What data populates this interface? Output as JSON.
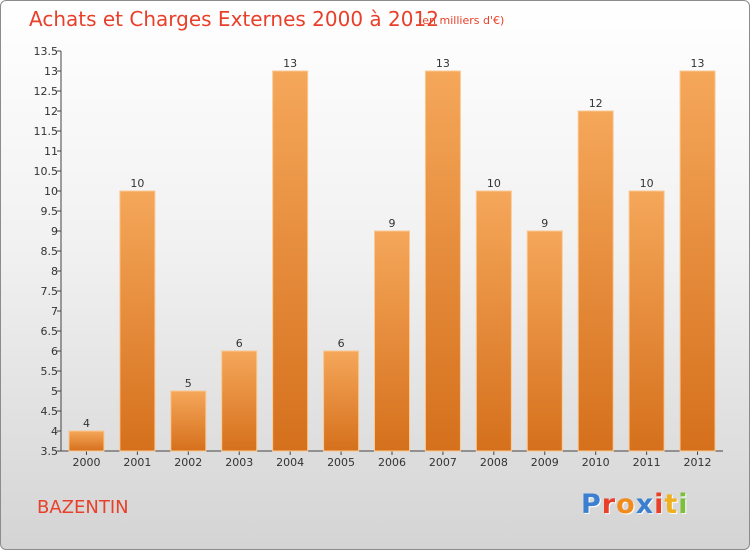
{
  "header": {
    "title": "Achats et Charges Externes 2000 à 2012",
    "unit": "(en milliers d'€)"
  },
  "footer": {
    "town": "BAZENTIN",
    "logo_letters": [
      "P",
      "r",
      "o",
      "x",
      "i",
      "t",
      "i"
    ],
    "logo_colors": [
      "#3a7fd0",
      "#e8402a",
      "#f08c1e",
      "#3a7fd0",
      "#e8402a",
      "#f0b01e",
      "#7bbf3a"
    ]
  },
  "colors": {
    "bar_light": "#f5a75a",
    "bar_dark": "#d5701c",
    "bar_edge": "#fbc890",
    "text_red": "#e8402a"
  },
  "chart_data": {
    "type": "bar",
    "title": "Achats et Charges Externes 2000 à 2012",
    "subtitle": "(en milliers d'€)",
    "categories": [
      "2000",
      "2001",
      "2002",
      "2003",
      "2004",
      "2005",
      "2006",
      "2007",
      "2008",
      "2009",
      "2010",
      "2011",
      "2012"
    ],
    "values": [
      4,
      10,
      5,
      6,
      13,
      6,
      9,
      13,
      10,
      9,
      12,
      10,
      13
    ],
    "ylim": [
      3.5,
      13.5
    ],
    "yticks": [
      "3.5",
      "4",
      "4.5",
      "5",
      "5.5",
      "6",
      "6.5",
      "7",
      "7.5",
      "8",
      "8.5",
      "9",
      "9.5",
      "10",
      "10.5",
      "11",
      "11.5",
      "12",
      "12.5",
      "13",
      "13.5"
    ],
    "grid": false,
    "legend": "none"
  }
}
